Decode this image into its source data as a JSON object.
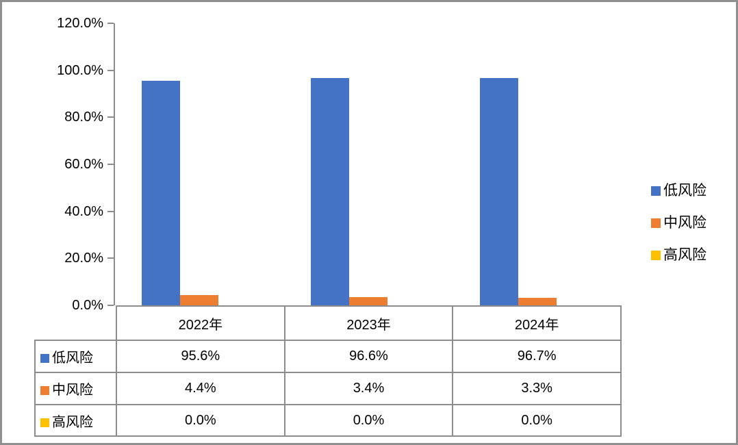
{
  "chart_data": {
    "type": "bar",
    "categories": [
      "2022年",
      "2023年",
      "2024年"
    ],
    "series": [
      {
        "name": "低风险",
        "color": "#4472C4",
        "values": [
          95.6,
          96.6,
          96.7
        ]
      },
      {
        "name": "中风险",
        "color": "#ED7D31",
        "values": [
          4.4,
          3.4,
          3.3
        ]
      },
      {
        "name": "高风险",
        "color": "#FFC000",
        "values": [
          0.0,
          0.0,
          0.0
        ]
      }
    ],
    "table_values": [
      [
        "95.6%",
        "96.6%",
        "96.7%"
      ],
      [
        "4.4%",
        "3.4%",
        "3.3%"
      ],
      [
        "0.0%",
        "0.0%",
        "0.0%"
      ]
    ],
    "ytick_labels": [
      "0.0%",
      "20.0%",
      "40.0%",
      "60.0%",
      "80.0%",
      "100.0%",
      "120.0%"
    ],
    "ylim": [
      0,
      120
    ],
    "ytick_step": 20,
    "grid": false,
    "legend_position": "right",
    "legend_labels": [
      "低风险",
      "中风险",
      "高风险"
    ],
    "xlabel": "",
    "ylabel": ""
  },
  "colors": {
    "axis": "#8c8c8c",
    "table_border": "#8c8c8c",
    "frame": "#8f8f8f",
    "low_risk": "#4472C4",
    "mid_risk": "#ED7D31",
    "high_risk": "#FFC000"
  }
}
